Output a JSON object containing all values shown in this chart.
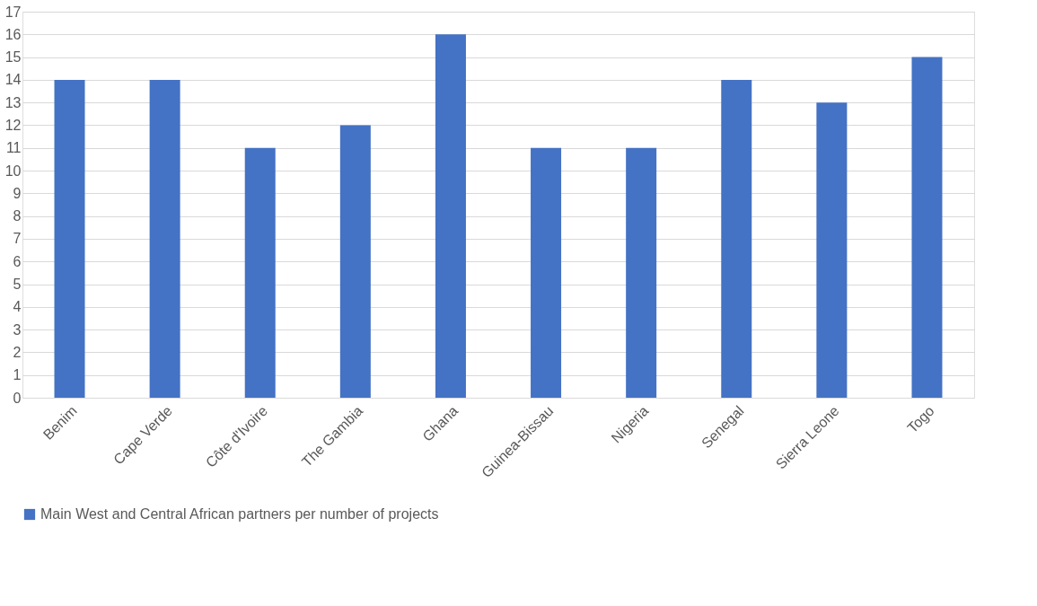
{
  "chart_data": {
    "type": "bar",
    "categories": [
      "Benim",
      "Cape Verde",
      "Côte d'Ivoire",
      "The Gambia",
      "Ghana",
      "Guinea-Bissau",
      "Nigeria",
      "Senegal",
      "Sierra Leone",
      "Togo"
    ],
    "series": [
      {
        "name": "Main West and Central African partners per number of projects",
        "color": "#4472c4",
        "values": [
          14,
          14,
          11,
          12,
          16,
          11,
          11,
          14,
          13,
          15
        ]
      }
    ],
    "ylim": [
      0,
      17
    ],
    "yticks": [
      0,
      1,
      2,
      3,
      4,
      5,
      6,
      7,
      8,
      9,
      10,
      11,
      12,
      13,
      14,
      15,
      16,
      17
    ],
    "grid": "y",
    "legend": "bottom"
  }
}
